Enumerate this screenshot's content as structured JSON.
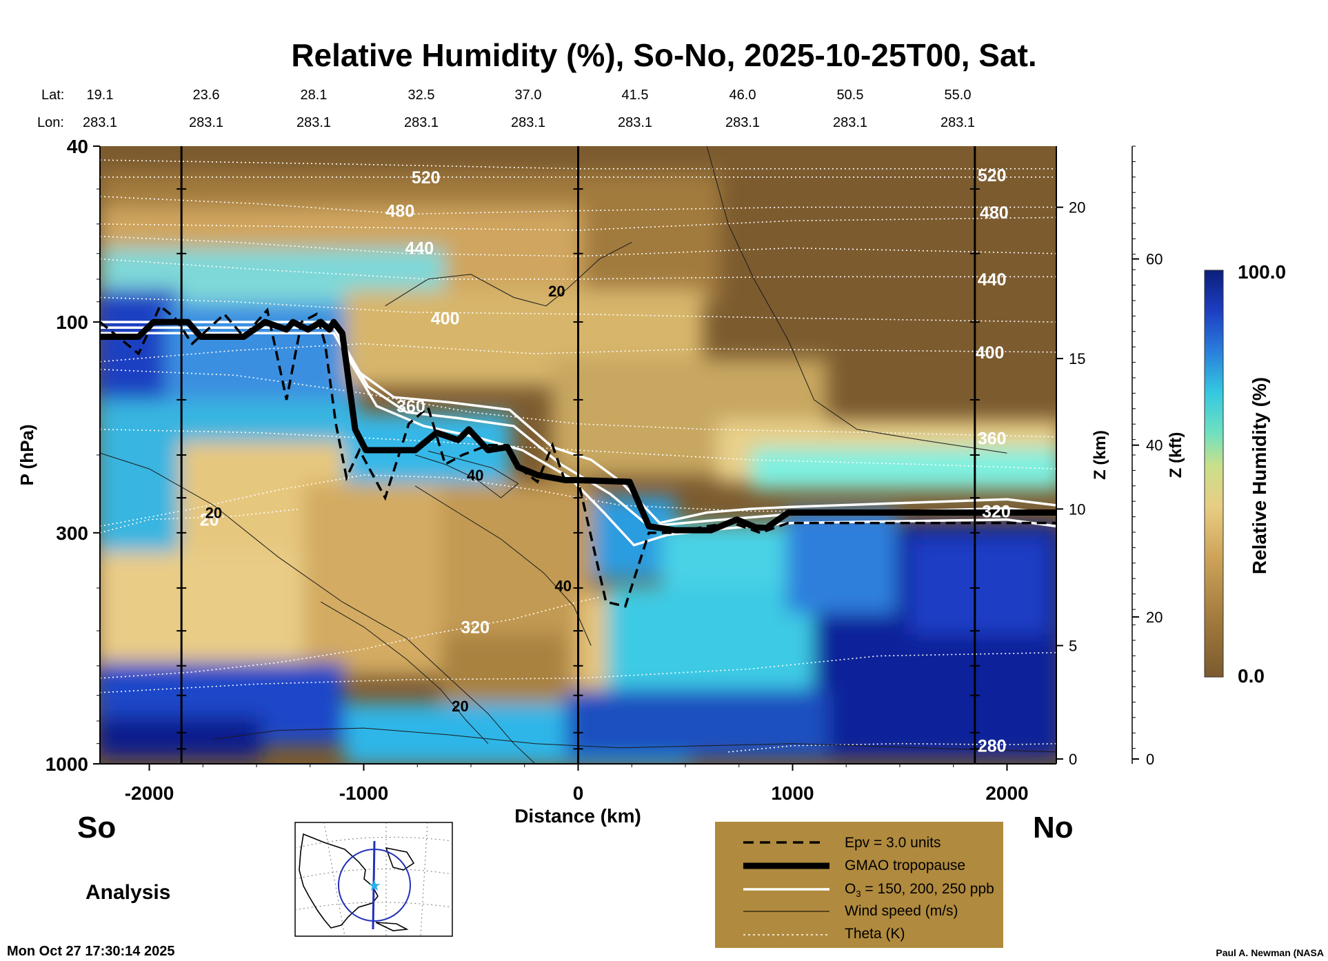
{
  "colors": {
    "dry": "#7a5a2e",
    "tan": "#d9b46a",
    "cyan": "#34c8d8",
    "blue": "#1d4fc0",
    "navy": "#0b1f8c",
    "legend_bg": "#b08a3e"
  },
  "chart_data": {
    "type": "heatmap",
    "title": "Relative Humidity (%), So-No, 2025-10-25T00, Sat.",
    "xlabel": "Distance (km)",
    "ylabel": "P (hPa)",
    "z_km_label": "Z (km)",
    "z_kft_label": "Z (kft)",
    "xlim": [
      -2230,
      2230
    ],
    "ylim_hpa": [
      1000,
      40
    ],
    "x_ticks": [
      -2000,
      -1000,
      0,
      1000,
      2000
    ],
    "x_tick_labels": [
      "-2000",
      "-1000",
      "0",
      "1000",
      "2000"
    ],
    "p_tick_labels": [
      {
        "p": 40,
        "label": "40"
      },
      {
        "p": 100,
        "label": "100"
      },
      {
        "p": 300,
        "label": "300"
      },
      {
        "p": 1000,
        "label": "1000"
      }
    ],
    "z_km_ticks": [
      {
        "p": 975,
        "label": "0"
      },
      {
        "p": 540,
        "label": "5"
      },
      {
        "p": 265,
        "label": "10"
      },
      {
        "p": 121,
        "label": "15"
      },
      {
        "p": 55,
        "label": "20"
      }
    ],
    "z_kft_ticks": [
      {
        "p": 975,
        "label": "0"
      },
      {
        "p": 465,
        "label": "20"
      },
      {
        "p": 190,
        "label": "40"
      },
      {
        "p": 72,
        "label": "60"
      }
    ],
    "lat_label": "Lat:",
    "lon_label": "Lon:",
    "latitudes": [
      "19.1",
      "23.6",
      "28.1",
      "32.5",
      "37.0",
      "41.5",
      "46.0",
      "50.5",
      "55.0"
    ],
    "longitudes": [
      "283.1",
      "283.1",
      "283.1",
      "283.1",
      "283.1",
      "283.1",
      "283.1",
      "283.1",
      "283.1"
    ],
    "left_end_label": "So",
    "right_end_label": "No",
    "analysis_label": "Analysis",
    "colorbar": {
      "label": "Relative Humidity (%)",
      "min": 0.0,
      "max": 100.0,
      "min_label": "0.0",
      "max_label": "100.0"
    },
    "tropopause": [
      [
        -2230,
        108
      ],
      [
        -2050,
        108
      ],
      [
        -1980,
        100
      ],
      [
        -1820,
        100
      ],
      [
        -1760,
        108
      ],
      [
        -1560,
        108
      ],
      [
        -1460,
        100
      ],
      [
        -1360,
        104
      ],
      [
        -1330,
        100
      ],
      [
        -1260,
        104
      ],
      [
        -1200,
        100
      ],
      [
        -1160,
        104
      ],
      [
        -1140,
        100
      ],
      [
        -1100,
        106
      ],
      [
        -1040,
        175
      ],
      [
        -990,
        195
      ],
      [
        -760,
        195
      ],
      [
        -660,
        178
      ],
      [
        -560,
        185
      ],
      [
        -510,
        175
      ],
      [
        -420,
        195
      ],
      [
        -330,
        192
      ],
      [
        -280,
        213
      ],
      [
        -190,
        222
      ],
      [
        -60,
        228
      ],
      [
        0,
        228
      ],
      [
        240,
        230
      ],
      [
        330,
        290
      ],
      [
        450,
        296
      ],
      [
        620,
        296
      ],
      [
        740,
        280
      ],
      [
        830,
        292
      ],
      [
        880,
        292
      ],
      [
        980,
        270
      ],
      [
        2230,
        270
      ]
    ],
    "epv_contour": [
      [
        -2230,
        100
      ],
      [
        -2050,
        118
      ],
      [
        -1950,
        92
      ],
      [
        -1880,
        98
      ],
      [
        -1800,
        112
      ],
      [
        -1650,
        96
      ],
      [
        -1560,
        108
      ],
      [
        -1450,
        94
      ],
      [
        -1360,
        150
      ],
      [
        -1290,
        100
      ],
      [
        -1220,
        96
      ],
      [
        -1180,
        112
      ],
      [
        -1130,
        170
      ],
      [
        -1080,
        225
      ],
      [
        -1020,
        195
      ],
      [
        -900,
        250
      ],
      [
        -790,
        170
      ],
      [
        -700,
        156
      ],
      [
        -620,
        210
      ],
      [
        -540,
        200
      ],
      [
        -420,
        190
      ],
      [
        -330,
        190
      ],
      [
        -280,
        213
      ],
      [
        -190,
        230
      ],
      [
        -120,
        190
      ],
      [
        -60,
        230
      ],
      [
        0,
        228
      ],
      [
        130,
        430
      ],
      [
        220,
        440
      ],
      [
        330,
        300
      ],
      [
        450,
        300
      ],
      [
        600,
        290
      ],
      [
        720,
        285
      ],
      [
        850,
        300
      ],
      [
        980,
        285
      ],
      [
        2230,
        285
      ]
    ],
    "ozone_contours": [
      [
        [
          -2230,
          100
        ],
        [
          -1140,
          100
        ],
        [
          -1040,
          128
        ],
        [
          -860,
          148
        ],
        [
          -600,
          152
        ],
        [
          -320,
          158
        ],
        [
          -120,
          192
        ],
        [
          60,
          205
        ],
        [
          200,
          230
        ],
        [
          380,
          285
        ],
        [
          600,
          270
        ],
        [
          800,
          265
        ],
        [
          1000,
          262
        ],
        [
          2000,
          252
        ],
        [
          2230,
          260
        ]
      ],
      [
        [
          -2230,
          103
        ],
        [
          -1140,
          103
        ],
        [
          -980,
          140
        ],
        [
          -800,
          160
        ],
        [
          -560,
          165
        ],
        [
          -300,
          172
        ],
        [
          -80,
          210
        ],
        [
          150,
          245
        ],
        [
          330,
          290
        ],
        [
          600,
          282
        ],
        [
          1000,
          272
        ],
        [
          2000,
          264
        ],
        [
          2230,
          272
        ]
      ],
      [
        [
          -2230,
          106
        ],
        [
          -1140,
          106
        ],
        [
          -940,
          155
        ],
        [
          -720,
          172
        ],
        [
          -480,
          182
        ],
        [
          -260,
          195
        ],
        [
          -40,
          225
        ],
        [
          120,
          270
        ],
        [
          260,
          320
        ],
        [
          420,
          303
        ],
        [
          700,
          293
        ],
        [
          1000,
          285
        ],
        [
          2000,
          280
        ],
        [
          2230,
          290
        ]
      ]
    ],
    "wind_contours": [
      {
        "label": "20",
        "label_x": -1700,
        "label_p": 270,
        "points": [
          [
            -2230,
            198
          ],
          [
            -2000,
            215
          ],
          [
            -1700,
            260
          ],
          [
            -1400,
            340
          ],
          [
            -1100,
            430
          ],
          [
            -800,
            520
          ],
          [
            -600,
            640
          ],
          [
            -420,
            770
          ],
          [
            -300,
            900
          ],
          [
            -200,
            1000
          ]
        ]
      },
      {
        "label": "20",
        "label_x": -100,
        "label_p": 85,
        "points": [
          [
            -900,
            92
          ],
          [
            -700,
            80
          ],
          [
            -500,
            78
          ],
          [
            -300,
            88
          ],
          [
            -150,
            92
          ],
          [
            -50,
            84
          ],
          [
            100,
            72
          ],
          [
            250,
            66
          ]
        ]
      },
      {
        "label": "40",
        "label_x": -480,
        "label_p": 222,
        "points": [
          [
            -760,
            200
          ],
          [
            -620,
            210
          ],
          [
            -480,
            226
          ],
          [
            -360,
            250
          ],
          [
            -280,
            232
          ],
          [
            -400,
            214
          ],
          [
            -560,
            204
          ],
          [
            -700,
            196
          ]
        ]
      },
      {
        "label": "40",
        "label_x": -70,
        "label_p": 395,
        "points": [
          [
            -760,
            235
          ],
          [
            -560,
            270
          ],
          [
            -360,
            310
          ],
          [
            -160,
            370
          ],
          [
            -20,
            440
          ],
          [
            60,
            540
          ]
        ]
      },
      {
        "label": "20",
        "label_x": -550,
        "label_p": 740,
        "points": [
          [
            -1200,
            430
          ],
          [
            -1000,
            490
          ],
          [
            -800,
            580
          ],
          [
            -640,
            680
          ],
          [
            -520,
            800
          ],
          [
            -420,
            900
          ]
        ]
      },
      {
        "label": "",
        "label_x": 0,
        "label_p": 0,
        "points": [
          [
            600,
            40
          ],
          [
            700,
            60
          ],
          [
            820,
            80
          ],
          [
            980,
            110
          ],
          [
            1100,
            150
          ],
          [
            1300,
            175
          ],
          [
            1600,
            185
          ],
          [
            2000,
            198
          ]
        ]
      },
      {
        "label": "",
        "label_x": 0,
        "label_p": 0,
        "points": [
          [
            -1700,
            880
          ],
          [
            -1400,
            840
          ],
          [
            -1000,
            830
          ],
          [
            -600,
            860
          ],
          [
            -200,
            900
          ],
          [
            200,
            920
          ],
          [
            600,
            910
          ],
          [
            1000,
            900
          ],
          [
            1600,
            920
          ],
          [
            2230,
            940
          ]
        ]
      }
    ],
    "theta_contours": [
      {
        "label": "520",
        "label_x": -710,
        "label_p": 47,
        "points": [
          [
            -2230,
            43
          ],
          [
            -1000,
            44
          ],
          [
            0,
            45
          ],
          [
            1800,
            45
          ],
          [
            2230,
            45
          ]
        ]
      },
      {
        "label": "520",
        "label_x": 1930,
        "label_p": 46.5,
        "points": [
          [
            -2230,
            47
          ],
          [
            0,
            47
          ],
          [
            2230,
            47
          ]
        ]
      },
      {
        "label": "480",
        "label_x": -830,
        "label_p": 56,
        "points": [
          [
            -2230,
            52
          ],
          [
            -1500,
            54
          ],
          [
            -800,
            57
          ],
          [
            0,
            56
          ],
          [
            1000,
            55
          ],
          [
            2230,
            55
          ]
        ]
      },
      {
        "label": "480",
        "label_x": 1940,
        "label_p": 56.5,
        "points": [
          [
            -2230,
            60
          ],
          [
            0,
            62
          ],
          [
            1000,
            59
          ],
          [
            2230,
            58
          ]
        ]
      },
      {
        "label": "440",
        "label_x": -740,
        "label_p": 68,
        "points": [
          [
            -2230,
            64
          ],
          [
            -1600,
            66
          ],
          [
            -800,
            70
          ],
          [
            0,
            71
          ],
          [
            1000,
            68
          ],
          [
            2230,
            70
          ]
        ]
      },
      {
        "label": "440",
        "label_x": 1930,
        "label_p": 80,
        "points": [
          [
            -2230,
            72
          ],
          [
            -1500,
            76
          ],
          [
            -700,
            80
          ],
          [
            0,
            80
          ],
          [
            1000,
            79
          ],
          [
            2230,
            79
          ]
        ]
      },
      {
        "label": "400",
        "label_x": -620,
        "label_p": 98,
        "points": [
          [
            -2230,
            88
          ],
          [
            -1600,
            90
          ],
          [
            -800,
            95
          ],
          [
            0,
            96
          ],
          [
            1000,
            98
          ],
          [
            2230,
            100
          ]
        ]
      },
      {
        "label": "400",
        "label_x": 1920,
        "label_p": 117,
        "points": [
          [
            -2230,
            123
          ],
          [
            -1600,
            116
          ],
          [
            -1000,
            112
          ],
          [
            -200,
            118
          ],
          [
            600,
            115
          ],
          [
            1400,
            116
          ],
          [
            2230,
            117
          ]
        ]
      },
      {
        "label": "360",
        "label_x": -780,
        "label_p": 155,
        "points": [
          [
            -2230,
            128
          ],
          [
            -1600,
            132
          ],
          [
            -1000,
            145
          ],
          [
            -500,
            160
          ],
          [
            0,
            170
          ],
          [
            600,
            175
          ],
          [
            1400,
            178
          ],
          [
            2230,
            182
          ]
        ]
      },
      {
        "label": "360",
        "label_x": 1930,
        "label_p": 183,
        "points": [
          [
            -2230,
            175
          ],
          [
            -1500,
            178
          ],
          [
            -800,
            185
          ],
          [
            0,
            195
          ],
          [
            800,
            205
          ],
          [
            1600,
            210
          ],
          [
            2230,
            215
          ]
        ]
      },
      {
        "label": "320",
        "label_x": 1950,
        "label_p": 268,
        "points": [
          [
            -2230,
            290
          ],
          [
            -1800,
            265
          ],
          [
            -1400,
            240
          ],
          [
            -1000,
            222
          ],
          [
            -600,
            225
          ],
          [
            -200,
            240
          ],
          [
            200,
            260
          ],
          [
            800,
            268
          ],
          [
            1600,
            268
          ],
          [
            2230,
            268
          ]
        ]
      },
      {
        "label": "20",
        "label_x": -1720,
        "label_p": 280,
        "points": [
          [
            -2230,
            300
          ],
          [
            -2000,
            280
          ],
          [
            -1600,
            275
          ],
          [
            -1300,
            265
          ]
        ]
      },
      {
        "label": "320",
        "label_x": -480,
        "label_p": 490,
        "points": [
          [
            -2230,
            640
          ],
          [
            -1800,
            620
          ],
          [
            -1400,
            590
          ],
          [
            -1000,
            550
          ],
          [
            -700,
            510
          ],
          [
            -300,
            470
          ],
          [
            0,
            430
          ],
          [
            100,
            420
          ]
        ]
      },
      {
        "label": "",
        "label_x": 0,
        "label_p": 0,
        "points": [
          [
            -2230,
            690
          ],
          [
            -1500,
            660
          ],
          [
            -800,
            645
          ],
          [
            0,
            640
          ],
          [
            800,
            610
          ],
          [
            1400,
            570
          ],
          [
            2230,
            560
          ]
        ]
      },
      {
        "label": "280",
        "label_x": 1930,
        "label_p": 910,
        "points": [
          [
            700,
            940
          ],
          [
            1000,
            910
          ],
          [
            1500,
            900
          ],
          [
            2000,
            905
          ],
          [
            2230,
            900
          ]
        ]
      }
    ]
  },
  "legend": {
    "epv": "Epv = 3.0 units",
    "tropopause": "GMAO tropopause",
    "ozone_prefix": "O",
    "ozone_sub": "3",
    "ozone_suffix": " = 150, 200, 250 ppb",
    "wind": "Wind speed (m/s)",
    "theta": "Theta (K)"
  },
  "timestamp": "Mon Oct 27 17:30:14 2025",
  "credit": "Paul A. Newman (NASA"
}
